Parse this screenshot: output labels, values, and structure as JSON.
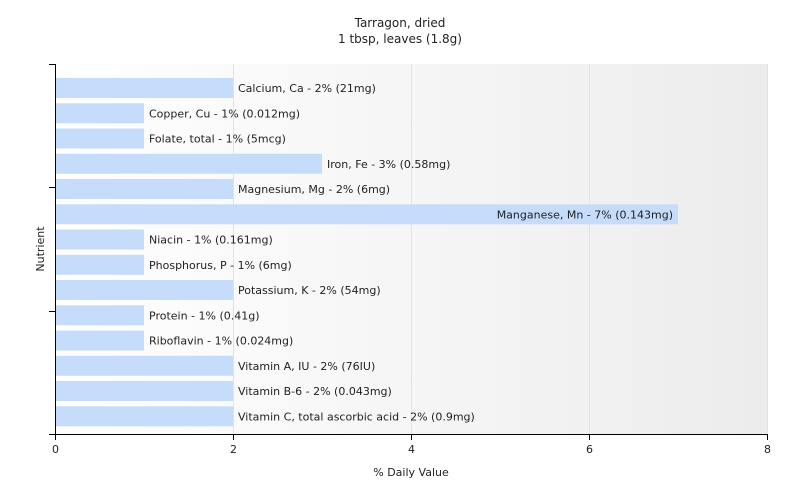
{
  "chart_data": {
    "type": "bar",
    "orientation": "horizontal",
    "title": "Tarragon, dried",
    "subtitle": "1 tbsp, leaves (1.8g)",
    "xlabel": "% Daily Value",
    "ylabel": "Nutrient",
    "xlim": [
      0,
      8
    ],
    "xticks": [
      0,
      2,
      4,
      6,
      8
    ],
    "grid": true,
    "colors": {
      "bar": "#c6dcfb",
      "plot_background_start": "#ffffff",
      "plot_background_end": "#ececec",
      "gridline": "#e2e2e2",
      "axis": "#000000"
    },
    "categories": [
      "Calcium, Ca",
      "Copper, Cu",
      "Folate, total",
      "Iron, Fe",
      "Magnesium, Mg",
      "Manganese, Mn",
      "Niacin",
      "Phosphorus, P",
      "Potassium, K",
      "Protein",
      "Riboflavin",
      "Vitamin A, IU",
      "Vitamin B-6",
      "Vitamin C, total ascorbic acid"
    ],
    "values": [
      2,
      1,
      1,
      3,
      2,
      7,
      1,
      1,
      2,
      1,
      1,
      2,
      2,
      2
    ],
    "bar_labels": [
      "Calcium, Ca - 2% (21mg)",
      "Copper, Cu - 1% (0.012mg)",
      "Folate, total - 1% (5mcg)",
      "Iron, Fe - 3% (0.58mg)",
      "Magnesium, Mg - 2% (6mg)",
      "Manganese, Mn - 7% (0.143mg)",
      "Niacin - 1% (0.161mg)",
      "Phosphorus, P - 1% (6mg)",
      "Potassium, K - 2% (54mg)",
      "Protein - 1% (0.41g)",
      "Riboflavin - 1% (0.024mg)",
      "Vitamin A, IU - 2% (76IU)",
      "Vitamin B-6 - 2% (0.043mg)",
      "Vitamin C, total ascorbic acid - 2% (0.9mg)"
    ]
  }
}
